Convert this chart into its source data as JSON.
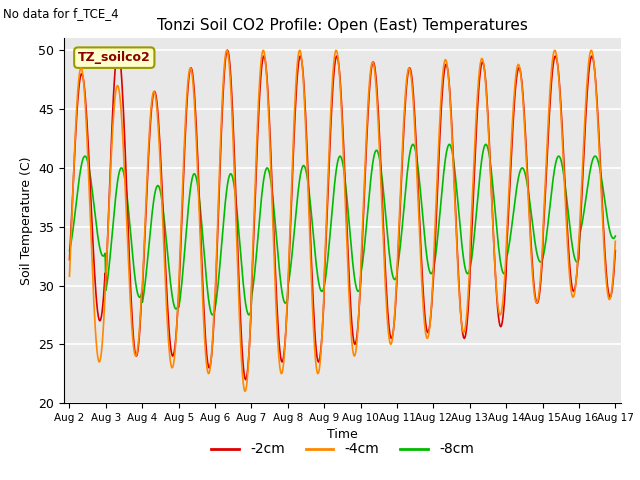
{
  "title": "Tonzi Soil CO2 Profile: Open (East) Temperatures",
  "no_data_label": "No data for f_TCE_4",
  "legend_box_label": "TZ_soilco2",
  "xlabel": "Time",
  "ylabel": "Soil Temperature (C)",
  "ylim": [
    20,
    51
  ],
  "yticks": [
    20,
    25,
    30,
    35,
    40,
    45,
    50
  ],
  "start_day": 2,
  "end_day": 17,
  "n_days": 15,
  "color_2cm": "#dd0000",
  "color_4cm": "#ff8800",
  "color_8cm": "#00bb00",
  "bg_color": "#e8e8e8",
  "fig_bg_color": "#ffffff",
  "line_width": 1.2,
  "series_labels": [
    "-2cm",
    "-4cm",
    "-8cm"
  ],
  "daily_peaks_2cm": [
    48.0,
    50.0,
    46.5,
    48.5,
    50.0,
    49.5,
    49.5,
    49.5,
    49.0,
    48.5,
    48.8,
    49.0,
    48.5,
    49.5,
    49.5
  ],
  "daily_mins_2cm": [
    27.0,
    24.0,
    24.0,
    23.0,
    22.0,
    23.5,
    23.5,
    25.0,
    25.5,
    26.0,
    25.5,
    26.5,
    28.5,
    29.5,
    29.0
  ],
  "daily_peaks_4cm": [
    48.5,
    47.0,
    46.5,
    48.5,
    50.0,
    50.0,
    50.0,
    50.0,
    49.0,
    48.5,
    49.2,
    49.3,
    48.8,
    50.0,
    50.0
  ],
  "daily_mins_4cm": [
    23.5,
    24.0,
    23.0,
    22.5,
    21.0,
    22.5,
    22.5,
    24.0,
    25.0,
    25.5,
    26.0,
    27.5,
    28.5,
    29.0,
    28.8
  ],
  "daily_peaks_8cm": [
    41.0,
    40.0,
    38.5,
    39.5,
    39.5,
    40.0,
    40.2,
    41.0,
    41.5,
    42.0,
    42.0,
    42.0,
    40.0,
    41.0,
    41.0
  ],
  "daily_mins_8cm": [
    32.5,
    29.0,
    28.0,
    27.5,
    27.5,
    28.5,
    29.5,
    29.5,
    30.5,
    31.0,
    31.0,
    31.0,
    32.0,
    32.0,
    34.0
  ],
  "samples_per_day": 48,
  "phase_2cm": -0.53,
  "phase_4cm": -0.43,
  "phase_8cm": -1.1
}
